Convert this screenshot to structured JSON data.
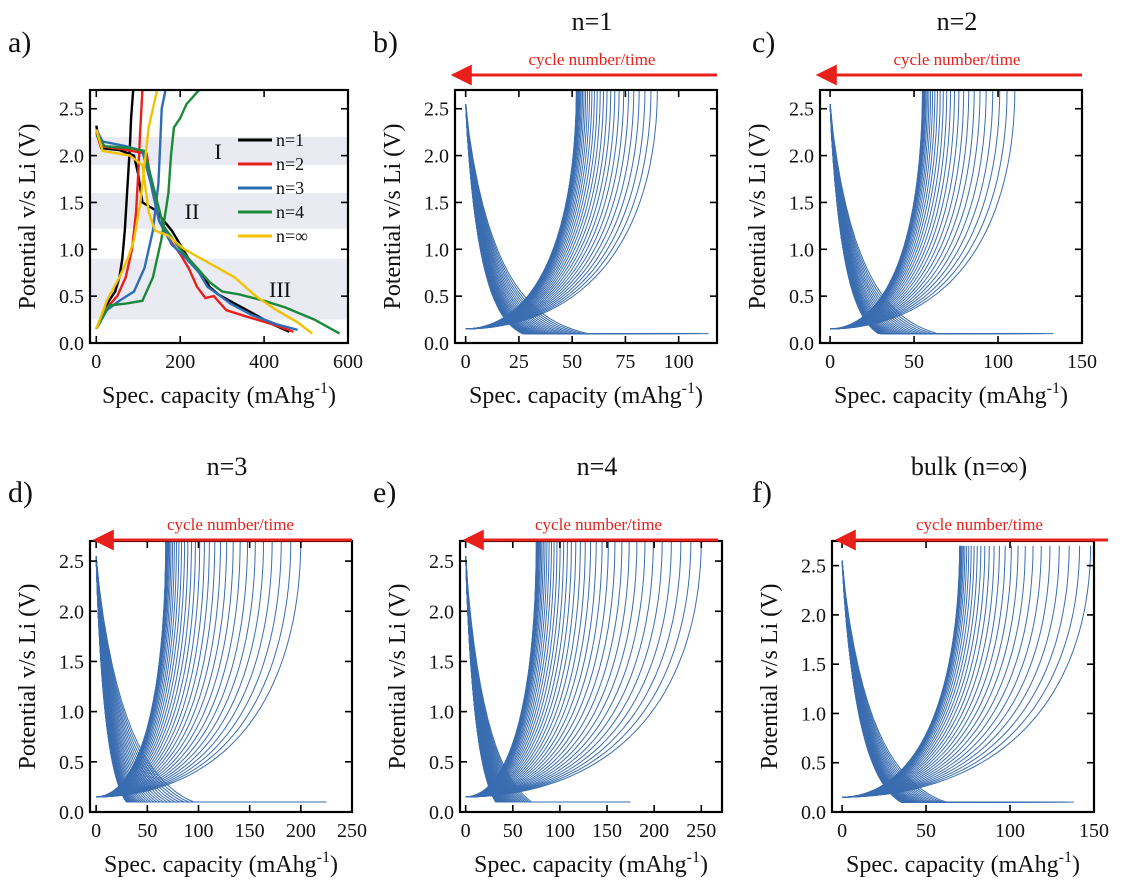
{
  "colors": {
    "axis": "#000000",
    "curve": "#3a6db0",
    "arrow": "#e8201b",
    "band": "#e9eaf2",
    "n1": "#000000",
    "n2": "#e8201b",
    "n3": "#2e6db4",
    "n4": "#1a8a3a",
    "ninf": "#f2c200"
  },
  "chart_data": [
    {
      "id": "a",
      "type": "line",
      "panel_label": "a)",
      "title": "",
      "xlabel": "Spec. capacity (mAhg",
      "xlabel_sup": "-1",
      "xlabel_end": ")",
      "ylabel": "Potential v/s Li (V)",
      "xlim": [
        -15,
        600
      ],
      "ylim": [
        0,
        2.7
      ],
      "xticks": [
        0,
        200,
        400,
        600
      ],
      "yticks": [
        "0.0",
        "0.5",
        "1.0",
        "1.5",
        "2.0",
        "2.5"
      ],
      "ytick_values": [
        0,
        0.5,
        1.0,
        1.5,
        2.0,
        2.5
      ],
      "bands": [
        {
          "label": "I",
          "y": [
            1.9,
            2.2
          ]
        },
        {
          "label": "II",
          "y": [
            1.22,
            1.6
          ]
        },
        {
          "label": "III",
          "y": [
            0.25,
            0.9
          ]
        }
      ],
      "legend": {
        "placement": "top-right"
      },
      "series": [
        {
          "name": "n=1",
          "color_key": "n1",
          "discharge": [
            [
              0,
              2.32
            ],
            [
              5,
              2.2
            ],
            [
              12,
              2.08
            ],
            [
              55,
              2.06
            ],
            [
              90,
              2.0
            ],
            [
              100,
              1.8
            ],
            [
              110,
              1.5
            ],
            [
              140,
              1.42
            ],
            [
              180,
              1.2
            ],
            [
              220,
              0.9
            ],
            [
              250,
              0.75
            ],
            [
              270,
              0.6
            ],
            [
              290,
              0.52
            ],
            [
              330,
              0.42
            ],
            [
              380,
              0.3
            ],
            [
              420,
              0.2
            ],
            [
              460,
              0.12
            ]
          ],
          "charge": [
            [
              0,
              0.15
            ],
            [
              15,
              0.3
            ],
            [
              30,
              0.45
            ],
            [
              45,
              0.55
            ],
            [
              55,
              0.7
            ],
            [
              62,
              0.9
            ],
            [
              68,
              1.2
            ],
            [
              72,
              1.5
            ],
            [
              76,
              1.8
            ],
            [
              80,
              2.1
            ],
            [
              83,
              2.4
            ],
            [
              88,
              2.7
            ]
          ]
        },
        {
          "name": "n=2",
          "color_key": "n2",
          "discharge": [
            [
              0,
              2.25
            ],
            [
              10,
              2.1
            ],
            [
              60,
              2.07
            ],
            [
              120,
              2.02
            ],
            [
              135,
              1.6
            ],
            [
              150,
              1.3
            ],
            [
              175,
              1.1
            ],
            [
              200,
              0.95
            ],
            [
              220,
              0.8
            ],
            [
              240,
              0.6
            ],
            [
              260,
              0.48
            ],
            [
              280,
              0.5
            ],
            [
              310,
              0.35
            ],
            [
              360,
              0.28
            ],
            [
              420,
              0.2
            ],
            [
              470,
              0.12
            ]
          ],
          "charge": [
            [
              0,
              0.15
            ],
            [
              20,
              0.35
            ],
            [
              50,
              0.5
            ],
            [
              70,
              0.7
            ],
            [
              85,
              1.0
            ],
            [
              95,
              1.4
            ],
            [
              100,
              1.8
            ],
            [
              104,
              2.2
            ],
            [
              110,
              2.7
            ]
          ]
        },
        {
          "name": "n=3",
          "color_key": "n3",
          "discharge": [
            [
              0,
              2.28
            ],
            [
              15,
              2.15
            ],
            [
              70,
              2.1
            ],
            [
              110,
              2.05
            ],
            [
              130,
              1.7
            ],
            [
              150,
              1.3
            ],
            [
              180,
              1.05
            ],
            [
              215,
              0.9
            ],
            [
              245,
              0.75
            ],
            [
              265,
              0.6
            ],
            [
              290,
              0.52
            ],
            [
              320,
              0.42
            ],
            [
              370,
              0.3
            ],
            [
              430,
              0.2
            ],
            [
              480,
              0.14
            ]
          ],
          "charge": [
            [
              0,
              0.15
            ],
            [
              25,
              0.35
            ],
            [
              55,
              0.45
            ],
            [
              90,
              0.55
            ],
            [
              115,
              0.8
            ],
            [
              135,
              1.2
            ],
            [
              148,
              1.7
            ],
            [
              152,
              2.1
            ],
            [
              156,
              2.5
            ],
            [
              165,
              2.7
            ]
          ]
        },
        {
          "name": "n=4",
          "color_key": "n4",
          "discharge": [
            [
              0,
              2.22
            ],
            [
              20,
              2.1
            ],
            [
              80,
              2.08
            ],
            [
              115,
              2.05
            ],
            [
              140,
              1.6
            ],
            [
              160,
              1.25
            ],
            [
              200,
              1.0
            ],
            [
              240,
              0.8
            ],
            [
              270,
              0.65
            ],
            [
              300,
              0.55
            ],
            [
              340,
              0.52
            ],
            [
              400,
              0.45
            ],
            [
              450,
              0.38
            ],
            [
              520,
              0.25
            ],
            [
              580,
              0.1
            ]
          ],
          "charge": [
            [
              0,
              0.15
            ],
            [
              30,
              0.4
            ],
            [
              70,
              0.42
            ],
            [
              110,
              0.45
            ],
            [
              135,
              0.7
            ],
            [
              155,
              1.1
            ],
            [
              172,
              1.6
            ],
            [
              178,
              2.0
            ],
            [
              185,
              2.3
            ],
            [
              200,
              2.4
            ],
            [
              215,
              2.55
            ],
            [
              245,
              2.7
            ]
          ]
        },
        {
          "name": "n=∞",
          "color_key": "ninf",
          "discharge": [
            [
              0,
              2.28
            ],
            [
              15,
              2.05
            ],
            [
              80,
              2.0
            ],
            [
              110,
              1.9
            ],
            [
              125,
              1.4
            ],
            [
              140,
              1.2
            ],
            [
              170,
              1.15
            ],
            [
              210,
              1.0
            ],
            [
              250,
              0.9
            ],
            [
              290,
              0.8
            ],
            [
              330,
              0.7
            ],
            [
              380,
              0.5
            ],
            [
              430,
              0.35
            ],
            [
              480,
              0.22
            ],
            [
              515,
              0.1
            ]
          ],
          "charge": [
            [
              0,
              0.15
            ],
            [
              25,
              0.45
            ],
            [
              55,
              0.7
            ],
            [
              75,
              0.9
            ],
            [
              90,
              1.1
            ],
            [
              105,
              1.5
            ],
            [
              115,
              1.9
            ],
            [
              125,
              2.3
            ],
            [
              135,
              2.5
            ],
            [
              145,
              2.7
            ]
          ]
        }
      ]
    },
    {
      "id": "b",
      "type": "line",
      "panel_label": "b)",
      "title": "n=1",
      "arrow_label": "cycle number/time",
      "xlabel": "Spec. capacity (mAhg",
      "xlabel_sup": "-1",
      "xlabel_end": ")",
      "ylabel": "Potential v/s Li (V)",
      "xlim": [
        -5,
        118
      ],
      "ylim": [
        0,
        2.7
      ],
      "xticks": [
        0,
        25,
        50,
        75,
        100
      ],
      "yticks": [
        "0.0",
        "0.5",
        "1.0",
        "1.5",
        "2.0",
        "2.5"
      ],
      "ytick_values": [
        0,
        0.5,
        1.0,
        1.5,
        2.0,
        2.5
      ],
      "cycles": {
        "count": 32,
        "charge_end_min": 52,
        "charge_end_max": 90,
        "discharge_end_min": 53,
        "discharge_end_max": 114,
        "discharge_knee": 0.22,
        "first_cycle_step": 0
      }
    },
    {
      "id": "c",
      "type": "line",
      "panel_label": "c)",
      "title": "n=2",
      "arrow_label": "cycle number/time",
      "xlabel": "Spec. capacity (mAhg",
      "xlabel_sup": "-1",
      "xlabel_end": ")",
      "ylabel": "Potential v/s Li (V)",
      "xlim": [
        -6,
        150
      ],
      "ylim": [
        0,
        2.7
      ],
      "xticks": [
        0,
        50,
        100,
        150
      ],
      "yticks": [
        "0.0",
        "0.5",
        "1.0",
        "1.5",
        "2.0",
        "2.5"
      ],
      "ytick_values": [
        0,
        0.5,
        1.0,
        1.5,
        2.0,
        2.5
      ],
      "cycles": {
        "count": 30,
        "charge_end_min": 55,
        "charge_end_max": 110,
        "discharge_end_min": 60,
        "discharge_end_max": 133,
        "discharge_knee": 0.25,
        "first_cycle_step": 0
      }
    },
    {
      "id": "d",
      "type": "line",
      "panel_label": "d)",
      "title": "n=3",
      "arrow_label": "cycle number/time",
      "xlabel": "Spec. capacity (mAhg",
      "xlabel_sup": "-1",
      "xlabel_end": ")",
      "ylabel": "Potential v/s Li (V)",
      "xlim": [
        -6,
        250
      ],
      "ylim": [
        0,
        2.7
      ],
      "xticks": [
        0,
        50,
        100,
        150,
        200,
        250
      ],
      "yticks": [
        "0.0",
        "0.5",
        "1.0",
        "1.5",
        "2.0",
        "2.5"
      ],
      "ytick_values": [
        0,
        0.5,
        1.0,
        1.5,
        2.0,
        2.5
      ],
      "cycles": {
        "count": 34,
        "charge_end_min": 68,
        "charge_end_max": 200,
        "discharge_end_min": 70,
        "discharge_end_max": 225,
        "discharge_knee": 0.35,
        "first_cycle_step": 1
      }
    },
    {
      "id": "e",
      "type": "line",
      "panel_label": "e)",
      "title": "n=4",
      "arrow_label": "cycle number/time",
      "xlabel": "Spec. capacity (mAhg",
      "xlabel_sup": "-1",
      "xlabel_end": ")",
      "ylabel": "Potential v/s Li (V)",
      "xlim": [
        -6,
        272
      ],
      "ylim": [
        0,
        2.7
      ],
      "xticks": [
        0,
        50,
        100,
        150,
        200,
        250
      ],
      "yticks": [
        "0.0",
        "0.5",
        "1.0",
        "1.5",
        "2.0",
        "2.5"
      ],
      "ytick_values": [
        0,
        0.5,
        1.0,
        1.5,
        2.0,
        2.5
      ],
      "cycles": {
        "count": 40,
        "charge_end_min": 75,
        "charge_end_max": 250,
        "discharge_end_min": 80,
        "discharge_end_max": 175,
        "discharge_knee": 0.4,
        "first_cycle_step": 1
      }
    },
    {
      "id": "f",
      "type": "line",
      "panel_label": "f)",
      "title": "bulk (n=∞)",
      "arrow_label": "cycle number/time",
      "xlabel": "Spec. capacity (mAhg",
      "xlabel_sup": "-1",
      "xlabel_end": ")",
      "ylabel": "Potential v/s Li (V)",
      "xlim": [
        -6,
        150
      ],
      "ylim": [
        0,
        2.75
      ],
      "xticks": [
        0,
        50,
        100,
        150
      ],
      "yticks": [
        "0.0",
        "0.5",
        "1.0",
        "1.5",
        "2.0",
        "2.5"
      ],
      "ytick_values": [
        0,
        0.5,
        1.0,
        1.5,
        2.0,
        2.5
      ],
      "cycles": {
        "count": 30,
        "charge_end_min": 70,
        "charge_end_max": 148,
        "discharge_end_min": 78,
        "discharge_end_max": 138,
        "discharge_knee": 0.3,
        "first_cycle_step": 0
      }
    }
  ]
}
